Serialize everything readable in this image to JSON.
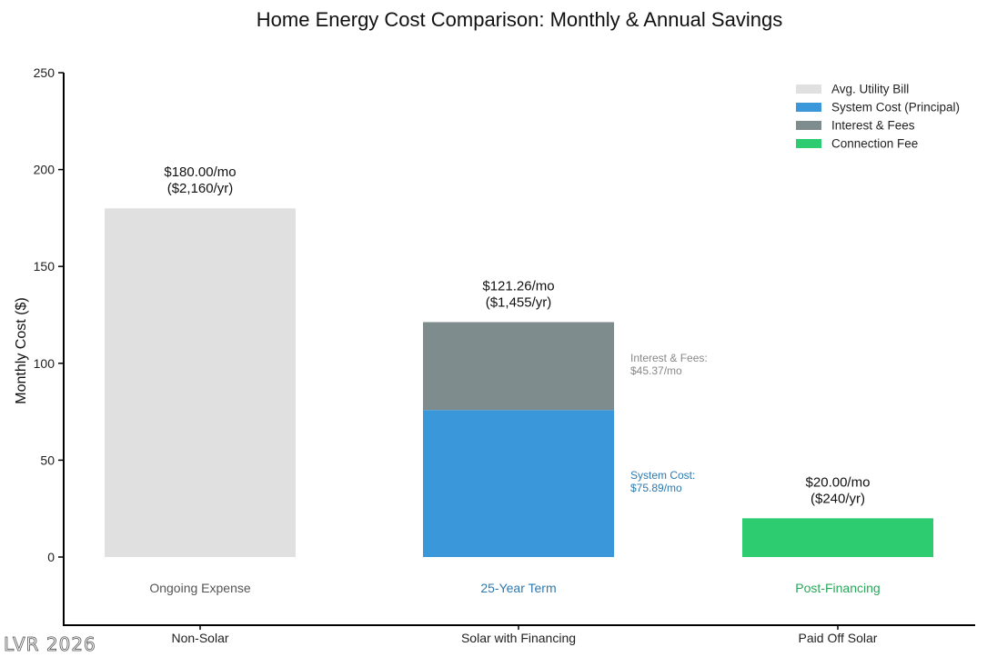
{
  "chart_data": {
    "type": "bar",
    "title": "Home Energy Cost Comparison: Monthly & Annual Savings",
    "ylabel": "Monthly Cost ($)",
    "xlabel": "",
    "ylim": [
      0,
      250
    ],
    "yticks": [
      0,
      50,
      100,
      150,
      200,
      250
    ],
    "categories": [
      "Non-Solar",
      "Solar with Financing",
      "Paid Off Solar"
    ],
    "series": [
      {
        "name": "Avg. Utility Bill",
        "color": "#e0e0e0",
        "values": [
          180.0,
          0,
          0
        ]
      },
      {
        "name": "System Cost (Principal)",
        "color": "#3a97d9",
        "values": [
          0,
          75.89,
          0
        ]
      },
      {
        "name": "Interest & Fees",
        "color": "#7f8c8d",
        "values": [
          0,
          45.37,
          0
        ]
      },
      {
        "name": "Connection Fee",
        "color": "#2ecc71",
        "values": [
          0,
          0,
          20.0
        ]
      }
    ],
    "totals": [
      180.0,
      121.26,
      20.0
    ],
    "total_labels": [
      {
        "line1": "$180.00/mo",
        "line2": "($2,160/yr)"
      },
      {
        "line1": "$121.26/mo",
        "line2": "($1,455/yr)"
      },
      {
        "line1": "$20.00/mo",
        "line2": "($240/yr)"
      }
    ],
    "sub_labels": [
      {
        "text": "Ongoing Expense",
        "color": "#555555"
      },
      {
        "text": "25-Year Term",
        "color": "#2e7ab0"
      },
      {
        "text": "Post-Financing",
        "color": "#27a85a"
      }
    ],
    "side_annotations": [
      {
        "line1": "Interest & Fees:",
        "line2": "$45.37/mo",
        "color": "#888888",
        "series_index": 2,
        "category_index": 1
      },
      {
        "line1": "System Cost:",
        "line2": "$75.89/mo",
        "color": "#2e7ab0",
        "series_index": 1,
        "category_index": 1
      }
    ],
    "legend_position": "top-right",
    "grid": false
  },
  "watermark": "LVR 2026"
}
